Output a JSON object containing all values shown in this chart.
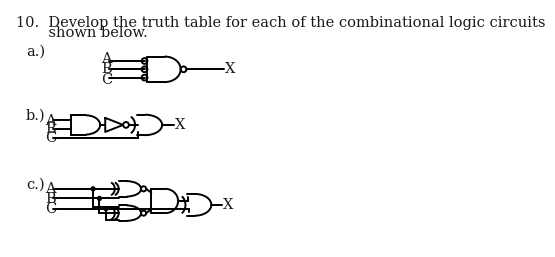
{
  "title_line1": "10.  Develop the truth table for each of the combinational logic circuits",
  "title_line2": "       shown below.",
  "bg_color": "#ffffff",
  "text_color": "#1a1a1a",
  "lw": 1.4
}
